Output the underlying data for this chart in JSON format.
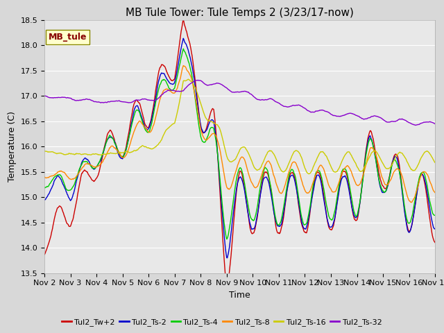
{
  "title": "MB Tule Tower: Tule Temps 2 (3/23/17-now)",
  "xlabel": "Time",
  "ylabel": "Temperature (C)",
  "ylim": [
    13.5,
    18.5
  ],
  "xlim": [
    0,
    360
  ],
  "bg_color": "#d8d8d8",
  "plot_bg_color": "#e8e8e8",
  "grid_color": "#ffffff",
  "series_colors": [
    "#cc0000",
    "#0000cc",
    "#00cc00",
    "#ff8800",
    "#cccc00",
    "#8800cc"
  ],
  "series_labels": [
    "Tul2_Tw+2",
    "Tul2_Ts-2",
    "Tul2_Ts-4",
    "Tul2_Ts-8",
    "Tul2_Ts-16",
    "Tul2_Ts-32"
  ],
  "xtick_labels": [
    "Nov 2",
    "Nov 3",
    "Nov 4",
    "Nov 5",
    "Nov 6",
    "Nov 7",
    "Nov 8",
    "Nov 9",
    "Nov 10",
    "Nov 11",
    "Nov 12",
    "Nov 13",
    "Nov 14",
    "Nov 15",
    "Nov 16",
    "Nov 17"
  ],
  "xtick_positions": [
    0,
    24,
    48,
    72,
    96,
    120,
    144,
    168,
    192,
    216,
    240,
    264,
    288,
    312,
    336,
    360
  ],
  "ytick_values": [
    13.5,
    14.0,
    14.5,
    15.0,
    15.5,
    16.0,
    16.5,
    17.0,
    17.5,
    18.0,
    18.5
  ],
  "legend_text": "MB_tule",
  "title_fontsize": 11,
  "label_fontsize": 9,
  "tick_fontsize": 8,
  "legend_fontsize": 8
}
